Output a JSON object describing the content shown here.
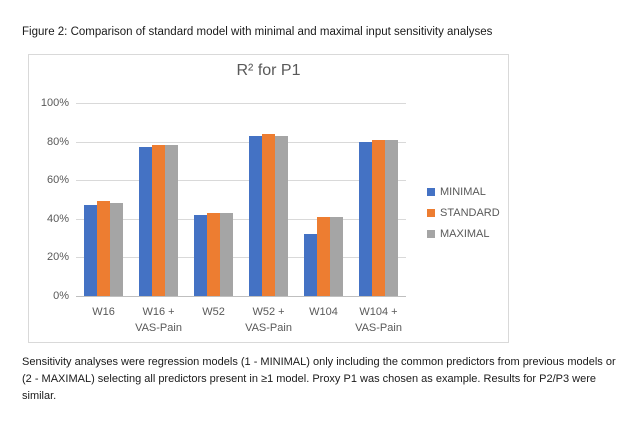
{
  "figure_title": "Figure 2: Comparison of standard model with minimal and maximal input sensitivity analyses",
  "chart_data": {
    "type": "bar",
    "title": "R² for P1",
    "categories": [
      "W16",
      "W16 +\nVAS-Pain",
      "W52",
      "W52 +\nVAS-Pain",
      "W104",
      "W104 +\nVAS-Pain"
    ],
    "series": [
      {
        "name": "MINIMAL",
        "color": "#4472C4",
        "values": [
          47,
          77,
          42,
          83,
          32,
          80
        ]
      },
      {
        "name": "STANDARD",
        "color": "#ED7D31",
        "values": [
          49,
          78,
          43,
          84,
          41,
          81
        ]
      },
      {
        "name": "MAXIMAL",
        "color": "#A5A5A5",
        "values": [
          48,
          78,
          43,
          83,
          41,
          81
        ]
      }
    ],
    "ylim": [
      0,
      100
    ],
    "y_tick_step": 20,
    "y_tick_labels": [
      "0%",
      "20%",
      "40%",
      "60%",
      "80%",
      "100%"
    ],
    "grid": true,
    "legend_position": "right",
    "unit": "percent"
  },
  "colors": {
    "series_blue": "#4472C4",
    "series_orange": "#ED7D31",
    "series_gray": "#A5A5A5",
    "gridline": "#D9D9D9",
    "axis_line": "#BFBFBF",
    "axis_text": "#595959",
    "chart_border": "#D9D9D9"
  },
  "footnote": {
    "lines": [
      "Sensitivity analyses were regression models (1 - MINIMAL) only including the common predictors from previous models or",
      "(2 - MAXIMAL) selecting all predictors present in ≥1 model. Proxy P1 was chosen as example. Results for P2/P3 were",
      "similar."
    ]
  }
}
